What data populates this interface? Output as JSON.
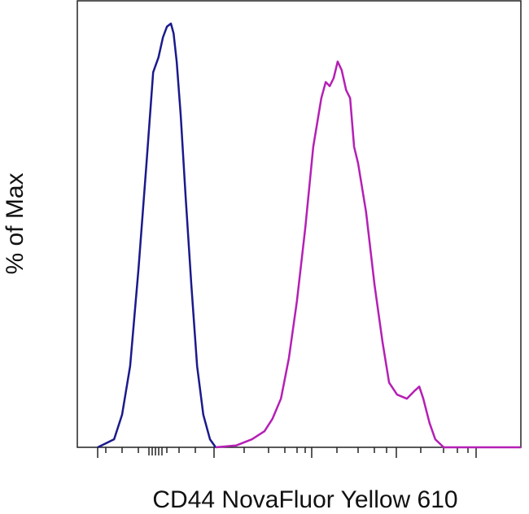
{
  "chart_data": {
    "type": "line",
    "xlabel": "CD44 NovaFluor Yellow 610",
    "ylabel": "% of Max",
    "xlim": [
      0,
      100
    ],
    "ylim": [
      0,
      100
    ],
    "series": [
      {
        "color": "#1a1a8c",
        "x": [
          4.6,
          8.3,
          10.1,
          11.9,
          13.8,
          15.6,
          17.1,
          18.3,
          19.3,
          20.2,
          21.1,
          21.7,
          22.4,
          23.3,
          24.4,
          25.7,
          27.0,
          28.4,
          29.9,
          31.2
        ],
        "values": [
          0,
          1.8,
          7.3,
          18.2,
          40,
          63.6,
          84,
          87.3,
          91.8,
          94.2,
          94.9,
          92.7,
          86.4,
          74.5,
          56.4,
          36.4,
          18.2,
          7.3,
          1.8,
          0
        ]
      },
      {
        "color": "#b51fb5",
        "x": [
          31.2,
          35.8,
          39.4,
          42.2,
          44.0,
          45.9,
          47.7,
          49.5,
          51.4,
          53.2,
          55.0,
          56.0,
          56.9,
          57.8,
          58.7,
          59.6,
          60.6,
          61.5,
          62.4,
          63.3,
          65.1,
          67.0,
          68.8,
          70.3,
          72.1,
          74.3,
          76.1,
          77.1,
          78.0,
          79.4,
          80.7,
          82.6,
          100
        ],
        "values": [
          0,
          0.4,
          1.8,
          3.6,
          6.4,
          10.9,
          20,
          32.7,
          49.1,
          67.3,
          78.2,
          81.8,
          80.9,
          82.7,
          86.4,
          84.5,
          80,
          78.2,
          67.3,
          63.6,
          52.7,
          36.4,
          23.6,
          14.5,
          11.8,
          10.9,
          12.7,
          13.6,
          10.9,
          5.5,
          1.8,
          0,
          0
        ]
      }
    ]
  }
}
